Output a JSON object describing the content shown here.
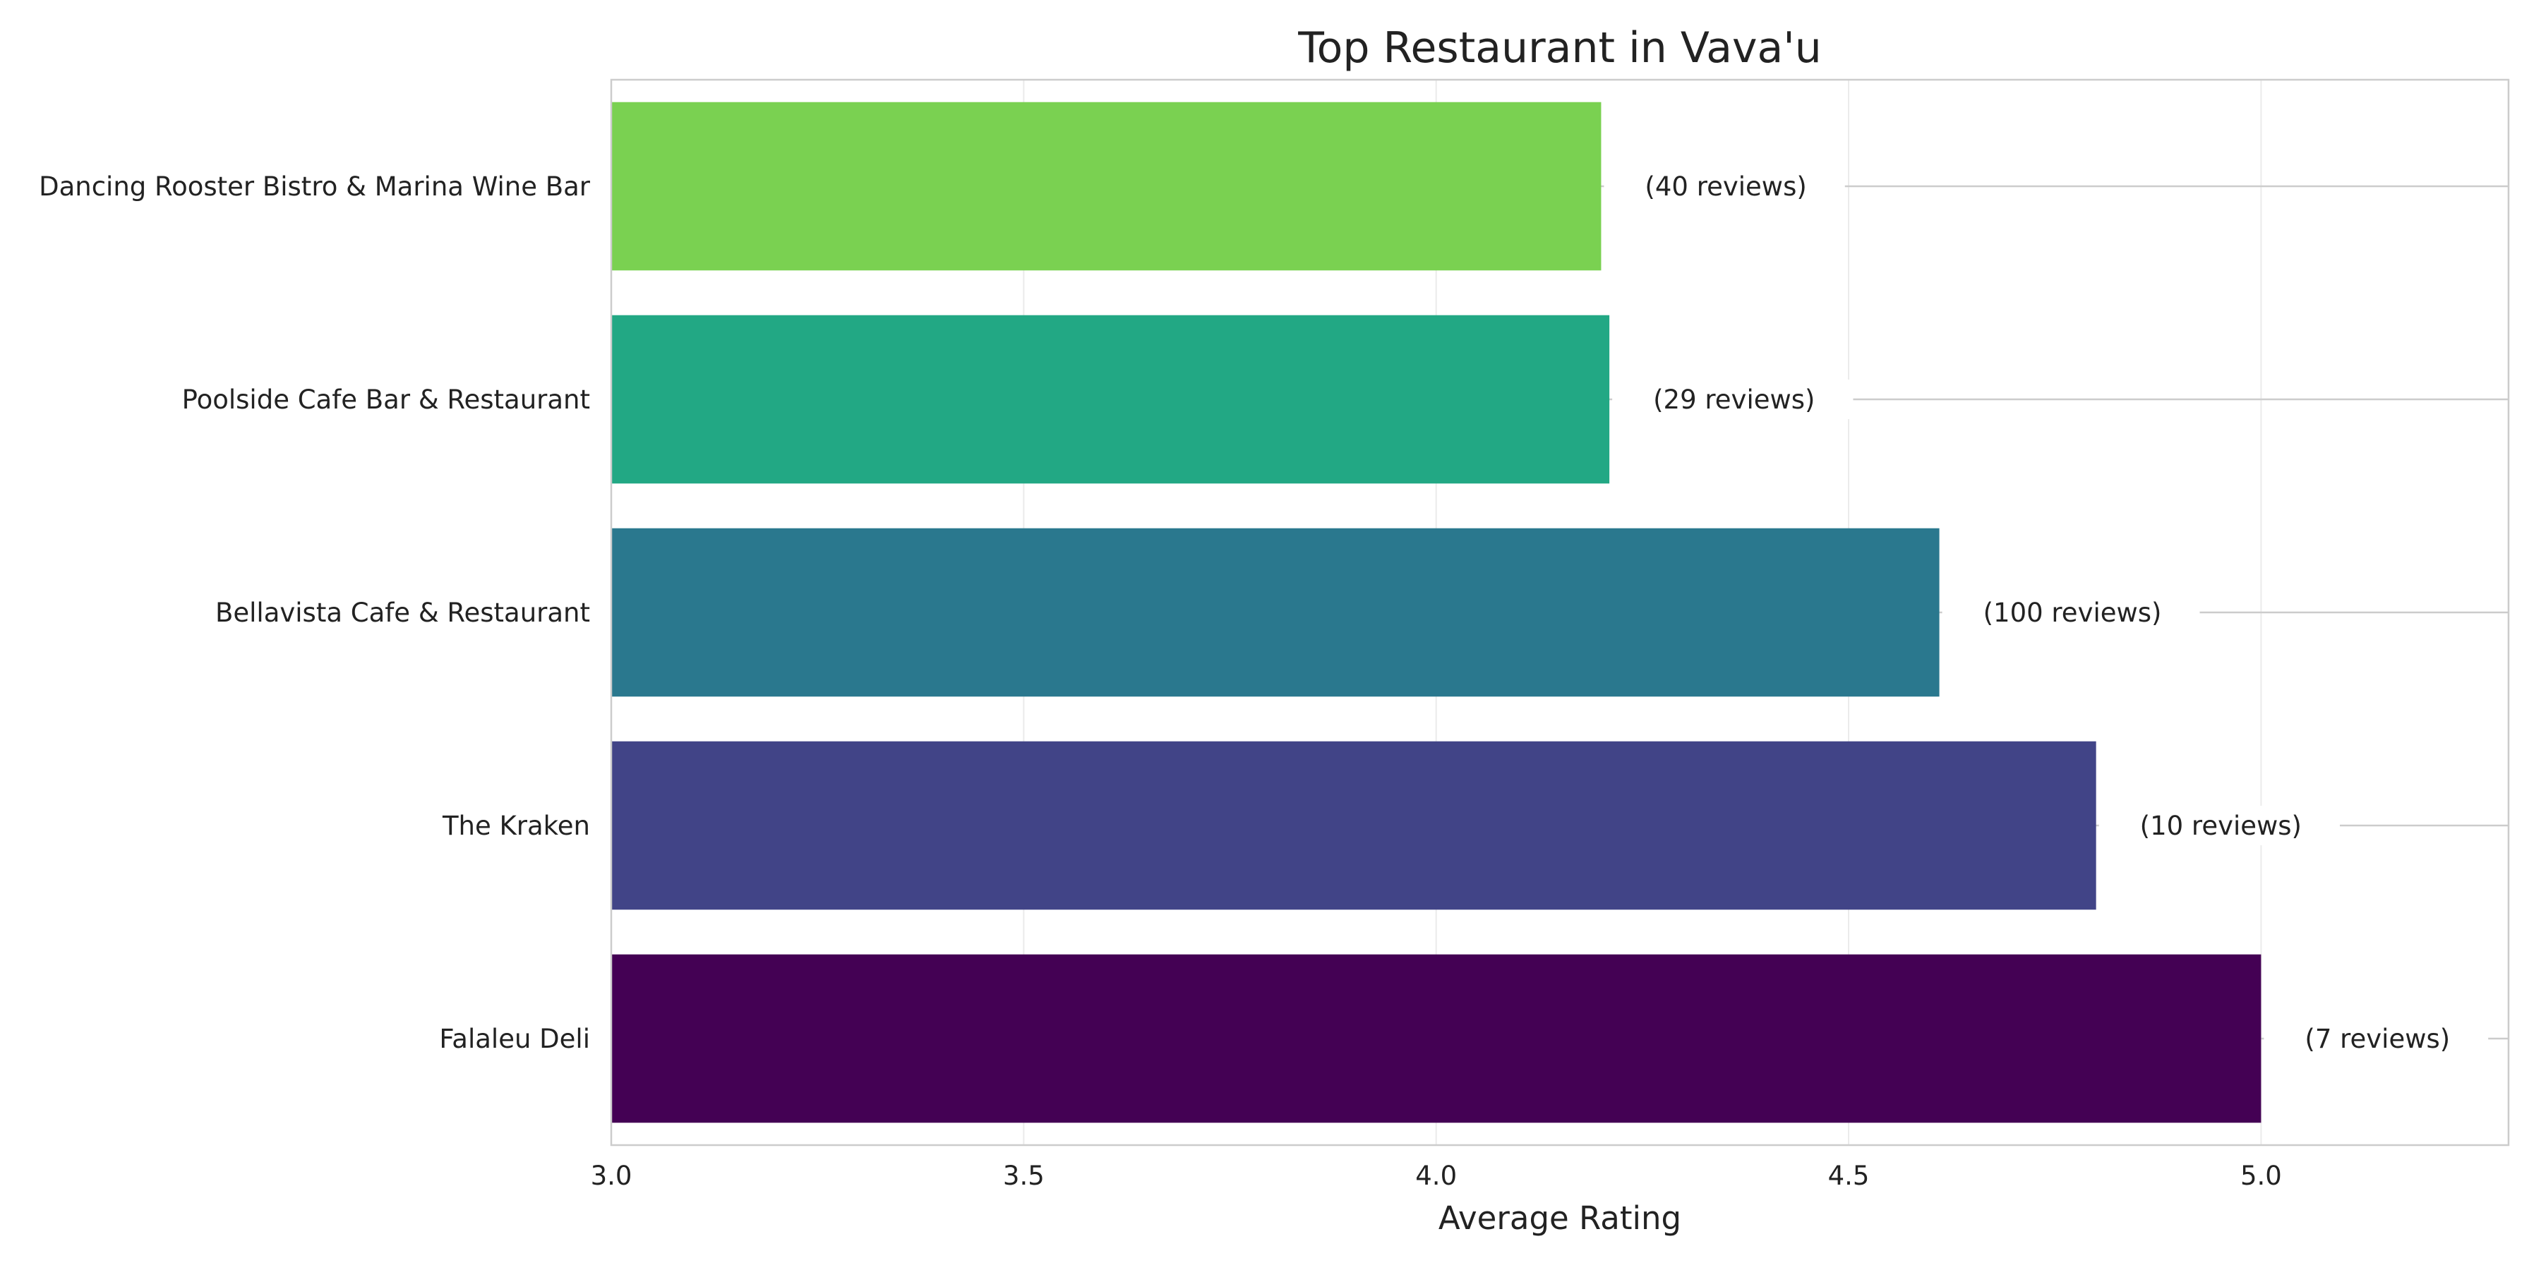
{
  "chart_data": {
    "type": "bar",
    "orientation": "horizontal",
    "title": "Top Restaurant in Vava'u",
    "xlabel": "Average Rating",
    "ylabel": "",
    "xlim": [
      3.0,
      5.3
    ],
    "x_ticks": [
      "3.0",
      "3.5",
      "4.0",
      "4.5",
      "5.0"
    ],
    "grid": true,
    "categories": [
      "Dancing Rooster Bistro & Marina Wine Bar",
      "Poolside Cafe Bar & Restaurant",
      "Bellavista Cafe & Restaurant",
      "The Kraken",
      "Falaleu Deli"
    ],
    "values": [
      4.2,
      4.21,
      4.61,
      4.8,
      5.0
    ],
    "data_labels": [
      "(40 reviews)",
      "(29 reviews)",
      "(100 reviews)",
      "(10 reviews)",
      "(7 reviews)"
    ],
    "colors": [
      "#7ad151",
      "#22a884",
      "#2a788e",
      "#414487",
      "#440154"
    ]
  }
}
